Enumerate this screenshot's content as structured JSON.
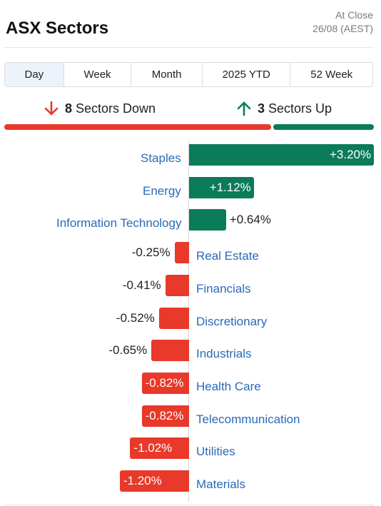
{
  "header": {
    "title": "ASX Sectors",
    "status_line1": "At Close",
    "status_line2": "26/08 (AEST)"
  },
  "tabs": [
    {
      "label": "Day",
      "active": true
    },
    {
      "label": "Week",
      "active": false
    },
    {
      "label": "Month",
      "active": false
    },
    {
      "label": "2025 YTD",
      "active": false
    },
    {
      "label": "52 Week",
      "active": false
    }
  ],
  "summary": {
    "down_count": "8",
    "down_label": "Sectors Down",
    "up_count": "3",
    "up_label": "Sectors Up"
  },
  "colors": {
    "positive": "#0b7c5a",
    "negative": "#e8392a",
    "link": "#2a6ab8"
  },
  "chart_data": {
    "type": "bar",
    "orientation": "horizontal",
    "categories": [
      "Staples",
      "Energy",
      "Information Technology",
      "Real Estate",
      "Financials",
      "Discretionary",
      "Industrials",
      "Health Care",
      "Telecommunication",
      "Utilities",
      "Materials"
    ],
    "values": [
      3.2,
      1.12,
      0.64,
      -0.25,
      -0.41,
      -0.52,
      -0.65,
      -0.82,
      -0.82,
      -1.02,
      -1.2
    ],
    "labels": [
      "+3.20%",
      "+1.12%",
      "+0.64%",
      "-0.25%",
      "-0.41%",
      "-0.52%",
      "-0.65%",
      "-0.82%",
      "-0.82%",
      "-1.02%",
      "-1.20%"
    ],
    "unit": "%"
  }
}
